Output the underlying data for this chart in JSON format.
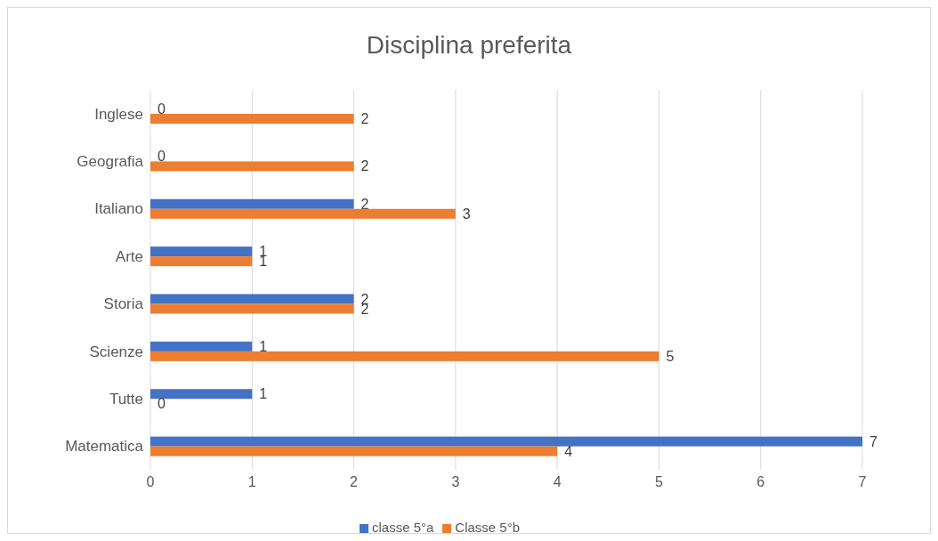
{
  "chart_data": {
    "type": "bar",
    "title": "Disciplina preferita",
    "orientation": "horizontal",
    "categories": [
      "Inglese",
      "Geografia",
      "Italiano",
      "Arte",
      "Storia",
      "Scienze",
      "Tutte",
      "Matematica"
    ],
    "series": [
      {
        "name": "classe 5°a",
        "color": "#4472c4",
        "values": [
          0,
          0,
          2,
          1,
          2,
          1,
          1,
          7
        ]
      },
      {
        "name": "Classe 5°b",
        "color": "#ed7d31",
        "values": [
          2,
          2,
          3,
          1,
          2,
          5,
          0,
          4
        ]
      }
    ],
    "xlim": [
      0,
      7
    ],
    "xticks": [
      0,
      1,
      2,
      3,
      4,
      5,
      6,
      7
    ],
    "grid": "x",
    "legend": "bottom",
    "data_labels": true
  }
}
